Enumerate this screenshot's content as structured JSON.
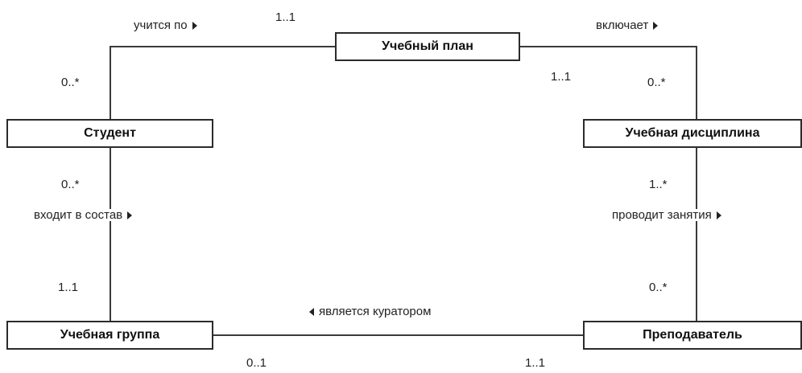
{
  "classes": {
    "plan": "Учебный план",
    "student": "Студент",
    "discipline": "Учебная дисциплина",
    "group": "Учебная группа",
    "teacher": "Преподаватель"
  },
  "associations": {
    "studies": {
      "label": "учится по",
      "direction": "right",
      "student_mult": "0..*",
      "plan_mult": "1..1"
    },
    "includes": {
      "label": "включает",
      "direction": "right",
      "plan_mult": "1..1",
      "discipline_mult": "0..*"
    },
    "member_of": {
      "label": "входит в состав",
      "direction": "right",
      "student_mult": "0..*",
      "group_mult": "1..1"
    },
    "teaches": {
      "label": "проводит занятия",
      "direction": "right",
      "discipline_mult": "1..*",
      "teacher_mult": "0..*"
    },
    "curator": {
      "label": "является куратором",
      "direction": "left",
      "group_mult": "0..1",
      "teacher_mult": "1..1"
    }
  }
}
